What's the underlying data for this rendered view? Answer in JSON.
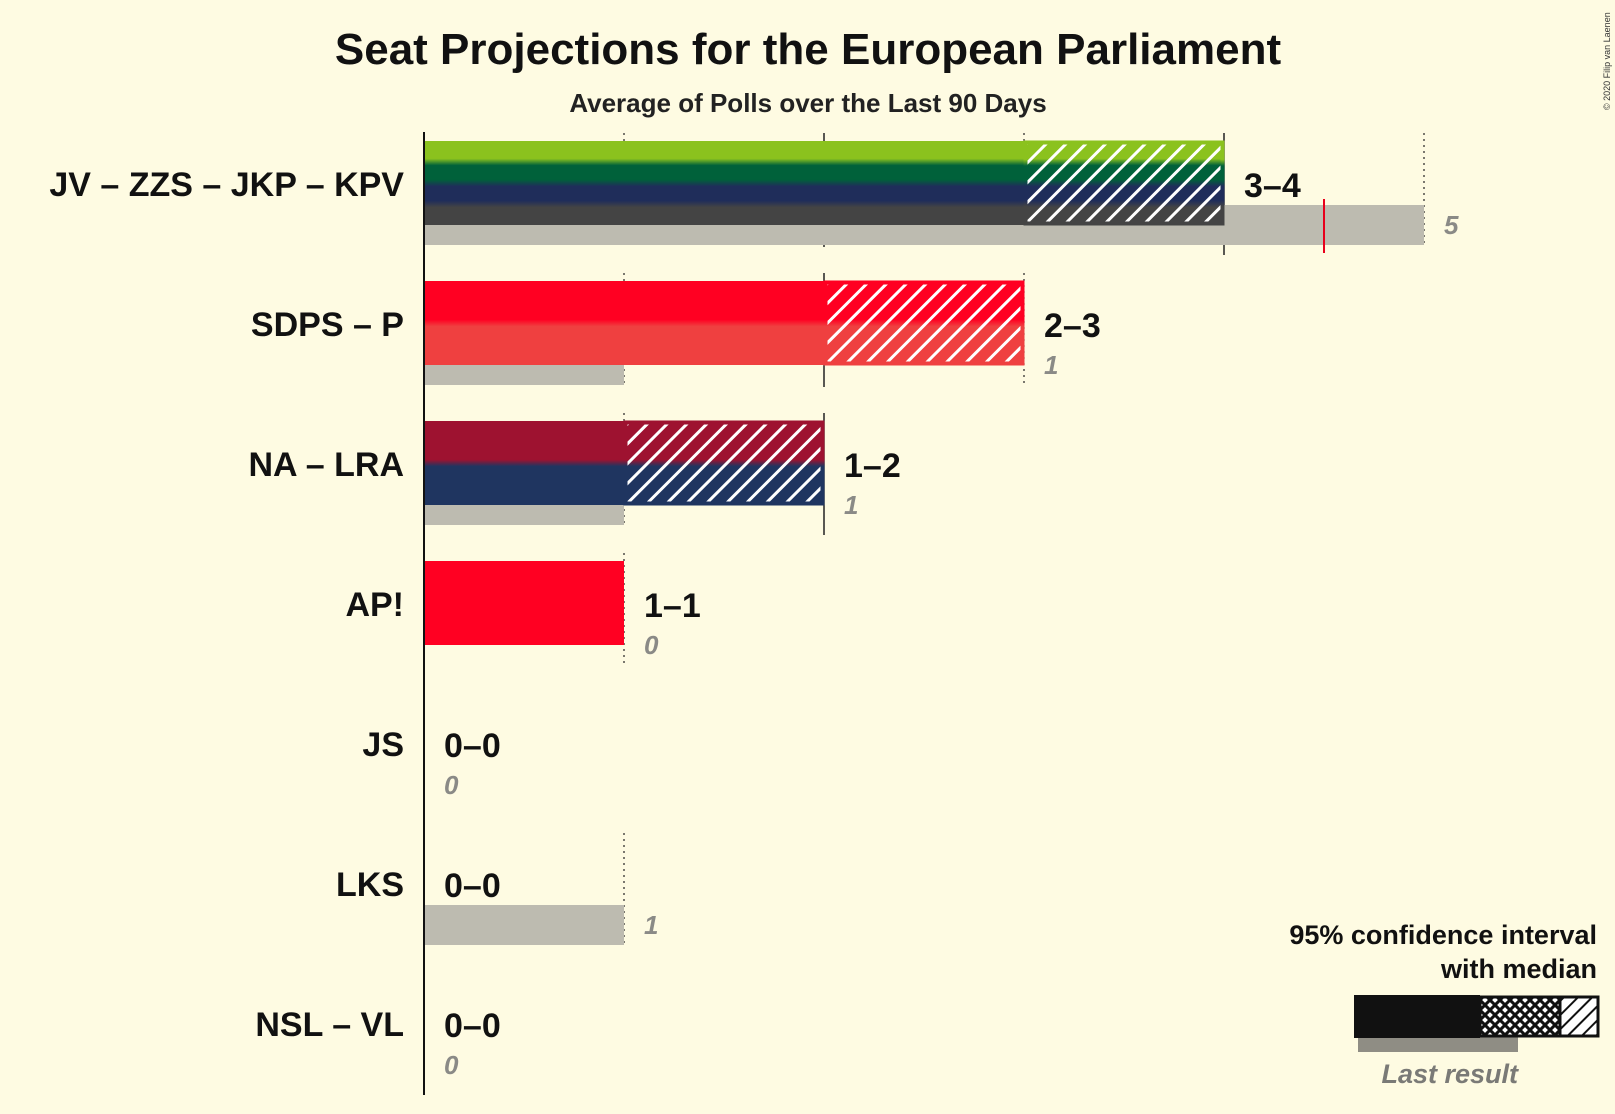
{
  "title": "Seat Projections for the European Parliament",
  "subtitle": "Average of Polls over the Last 90 Days",
  "copyright": "© 2020 Filip van Laenen",
  "legend": {
    "line1": "95% confidence interval",
    "line2": "with median",
    "last_result": "Last result"
  },
  "chart_data": {
    "type": "bar",
    "orientation": "horizontal",
    "title": "Seat Projections for the European Parliament",
    "subtitle": "Average of Polls over the Last 90 Days",
    "xlim": [
      0,
      5
    ],
    "grid": true,
    "legend_placement": "bottom-right",
    "categories": [
      "JV – ZZS – JKP – KPV",
      "SDPS – P",
      "NA – LRA",
      "AP!",
      "JS",
      "LKS",
      "NSL – VL"
    ],
    "parties": [
      {
        "name": "JV – ZZS – JKP – KPV",
        "low": 3,
        "high": 4,
        "median": 3,
        "last": 5,
        "majority_mark": 4.5,
        "range_label": "3–4",
        "last_label": "5",
        "colors": [
          "#8bc21e",
          "#00613a",
          "#1f2d5a",
          "#444444"
        ]
      },
      {
        "name": "SDPS – P",
        "low": 2,
        "high": 3,
        "median": 2,
        "last": 1,
        "range_label": "2–3",
        "last_label": "1",
        "colors": [
          "#ff0022",
          "#ef4040"
        ]
      },
      {
        "name": "NA – LRA",
        "low": 1,
        "high": 2,
        "median": 1,
        "last": 1,
        "range_label": "1–2",
        "last_label": "1",
        "colors": [
          "#9e1230",
          "#1f3560"
        ]
      },
      {
        "name": "AP!",
        "low": 1,
        "high": 1,
        "median": 1,
        "last": 0,
        "range_label": "1–1",
        "last_label": "0",
        "colors": [
          "#ff0022"
        ]
      },
      {
        "name": "JS",
        "low": 0,
        "high": 0,
        "median": 0,
        "last": 0,
        "range_label": "0–0",
        "last_label": "0",
        "colors": [
          "#888888"
        ]
      },
      {
        "name": "LKS",
        "low": 0,
        "high": 0,
        "median": 0,
        "last": 1,
        "range_label": "0–0",
        "last_label": "1",
        "colors": [
          "#888888"
        ]
      },
      {
        "name": "NSL – VL",
        "low": 0,
        "high": 0,
        "median": 0,
        "last": 0,
        "range_label": "0–0",
        "last_label": "0",
        "colors": [
          "#888888"
        ]
      }
    ],
    "last_result_color": "#bdbbb0",
    "majority_color": "#e8001c"
  }
}
